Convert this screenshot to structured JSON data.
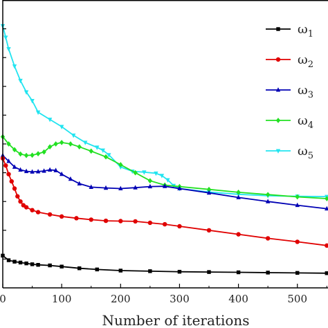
{
  "chart_data": {
    "type": "line",
    "title": "",
    "xlabel": "Number of iterations",
    "ylabel": "",
    "xlim": [
      0,
      552
    ],
    "ylim": [
      0,
      1
    ],
    "x_ticks": [
      0,
      100,
      200,
      300,
      400,
      500
    ],
    "x_tick_labels": [
      "0",
      "100",
      "200",
      "300",
      "400",
      "500"
    ],
    "grid": false,
    "legend_position": "top-right",
    "series": [
      {
        "name": "ω1",
        "color": "#000000",
        "marker": "square",
        "x": [
          0,
          10,
          20,
          30,
          40,
          50,
          60,
          80,
          100,
          130,
          160,
          200,
          250,
          300,
          350,
          400,
          450,
          500,
          550
        ],
        "y": [
          0.112,
          0.096,
          0.091,
          0.088,
          0.085,
          0.082,
          0.08,
          0.078,
          0.074,
          0.068,
          0.064,
          0.06,
          0.058,
          0.056,
          0.055,
          0.054,
          0.053,
          0.052,
          0.051
        ]
      },
      {
        "name": "ω2",
        "color": "#e00000",
        "marker": "circle",
        "x": [
          0,
          5,
          10,
          15,
          20,
          25,
          30,
          35,
          40,
          50,
          60,
          80,
          100,
          125,
          150,
          175,
          200,
          225,
          250,
          275,
          300,
          350,
          400,
          450,
          500,
          550
        ],
        "y": [
          0.45,
          0.425,
          0.395,
          0.37,
          0.345,
          0.318,
          0.3,
          0.287,
          0.28,
          0.27,
          0.263,
          0.255,
          0.248,
          0.242,
          0.237,
          0.233,
          0.232,
          0.231,
          0.226,
          0.221,
          0.214,
          0.2,
          0.186,
          0.172,
          0.16,
          0.147
        ]
      },
      {
        "name": "ω3",
        "color": "#0000b4",
        "marker": "triangle",
        "x": [
          0,
          10,
          20,
          30,
          40,
          50,
          60,
          70,
          80,
          90,
          100,
          115,
          130,
          150,
          175,
          200,
          225,
          250,
          275,
          300,
          350,
          400,
          450,
          500,
          550
        ],
        "y": [
          0.46,
          0.44,
          0.42,
          0.41,
          0.405,
          0.403,
          0.404,
          0.406,
          0.41,
          0.408,
          0.395,
          0.378,
          0.362,
          0.35,
          0.347,
          0.345,
          0.348,
          0.352,
          0.353,
          0.345,
          0.33,
          0.314,
          0.3,
          0.287,
          0.275
        ]
      },
      {
        "name": "ω4",
        "color": "#22e022",
        "marker": "diamond",
        "x": [
          0,
          10,
          20,
          30,
          40,
          50,
          60,
          70,
          80,
          90,
          100,
          115,
          130,
          150,
          175,
          200,
          225,
          250,
          275,
          300,
          350,
          400,
          450,
          500,
          550
        ],
        "y": [
          0.525,
          0.5,
          0.48,
          0.465,
          0.46,
          0.461,
          0.466,
          0.472,
          0.49,
          0.5,
          0.505,
          0.5,
          0.49,
          0.475,
          0.455,
          0.428,
          0.4,
          0.372,
          0.357,
          0.352,
          0.342,
          0.332,
          0.324,
          0.316,
          0.31
        ]
      },
      {
        "name": "ω5",
        "color": "#22e4f0",
        "marker": "inverted-triangle",
        "x": [
          0,
          5,
          10,
          20,
          30,
          40,
          50,
          60,
          80,
          100,
          120,
          140,
          160,
          170,
          180,
          200,
          220,
          240,
          260,
          270,
          280,
          290,
          300,
          350,
          400,
          450,
          500,
          550
        ],
        "y": [
          0.91,
          0.87,
          0.83,
          0.77,
          0.72,
          0.68,
          0.65,
          0.61,
          0.585,
          0.56,
          0.53,
          0.505,
          0.488,
          0.478,
          0.462,
          0.42,
          0.405,
          0.402,
          0.398,
          0.39,
          0.375,
          0.355,
          0.345,
          0.333,
          0.325,
          0.32,
          0.318,
          0.317
        ]
      }
    ]
  },
  "legend": {
    "items": [
      {
        "label": "ω",
        "sub": "1"
      },
      {
        "label": "ω",
        "sub": "2"
      },
      {
        "label": "ω",
        "sub": "3"
      },
      {
        "label": "ω",
        "sub": "4"
      },
      {
        "label": "ω",
        "sub": "5"
      }
    ]
  }
}
